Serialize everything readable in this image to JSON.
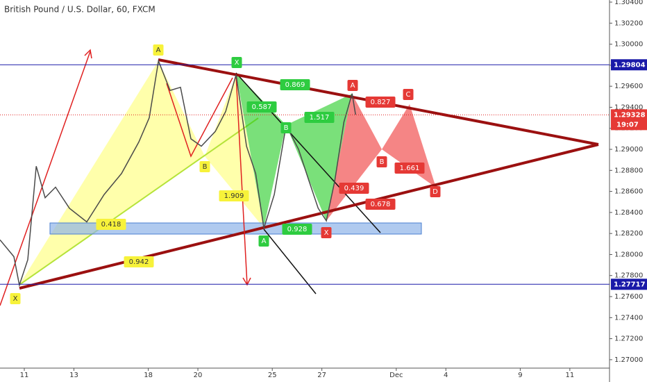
{
  "chart_data": {
    "type": "line",
    "title": "British Pound / U.S. Dollar, 60, FXCM",
    "xlim": [
      -0.98,
      23.6
    ],
    "ylim": [
      1.2692,
      1.3042
    ],
    "xticks": [
      {
        "value": 0,
        "label": "11"
      },
      {
        "value": 2,
        "label": "13"
      },
      {
        "value": 5,
        "label": "18"
      },
      {
        "value": 7,
        "label": "20"
      },
      {
        "value": 10,
        "label": "25"
      },
      {
        "value": 12,
        "label": "27"
      },
      {
        "value": 15,
        "label": "Dec"
      },
      {
        "value": 17,
        "label": "4"
      },
      {
        "value": 20,
        "label": "9"
      },
      {
        "value": 22,
        "label": "11"
      }
    ],
    "yticks": [
      {
        "value": 1.304,
        "label": "1.30400"
      },
      {
        "value": 1.302,
        "label": "1.30200"
      },
      {
        "value": 1.3,
        "label": "1.30000"
      },
      {
        "value": 1.298,
        "label": "1.29800"
      },
      {
        "value": 1.296,
        "label": "1.29600"
      },
      {
        "value": 1.294,
        "label": "1.29400"
      },
      {
        "value": 1.292,
        "label": "1.29200"
      },
      {
        "value": 1.29,
        "label": "1.29000"
      },
      {
        "value": 1.288,
        "label": "1.28800"
      },
      {
        "value": 1.286,
        "label": "1.28600"
      },
      {
        "value": 1.284,
        "label": "1.28400"
      },
      {
        "value": 1.282,
        "label": "1.28200"
      },
      {
        "value": 1.28,
        "label": "1.28000"
      },
      {
        "value": 1.278,
        "label": "1.27800"
      },
      {
        "value": 1.276,
        "label": "1.27600"
      },
      {
        "value": 1.274,
        "label": "1.27400"
      },
      {
        "value": 1.272,
        "label": "1.27200"
      },
      {
        "value": 1.27,
        "label": "1.27000"
      }
    ],
    "series": [
      {
        "color": "#4a4a4a",
        "x": [
          -0.98,
          -0.42,
          -0.2,
          0.14,
          0.48,
          0.84,
          1.26,
          1.82,
          2.52,
          3.22,
          3.92,
          4.62,
          5.04,
          5.41,
          5.88,
          6.3,
          6.72,
          7.14,
          7.7,
          8.12,
          8.54,
          8.96,
          9.33,
          9.66,
          10.08,
          10.56,
          11.06,
          11.48,
          11.85,
          12.18,
          12.52,
          12.89,
          13.22,
          13.36
        ],
        "values": [
          1.2814,
          1.2798,
          1.2771,
          1.2795,
          1.2884,
          1.2854,
          1.2864,
          1.2844,
          1.2831,
          1.2857,
          1.2877,
          1.2907,
          1.293,
          1.2984,
          1.2956,
          1.2959,
          1.291,
          1.2903,
          1.2917,
          1.2936,
          1.2971,
          1.2903,
          1.2877,
          1.2825,
          1.2857,
          1.2923,
          1.29,
          1.287,
          1.2844,
          1.2832,
          1.287,
          1.2926,
          1.2953,
          1.2933
        ]
      }
    ],
    "hlines": [
      {
        "value": 1.29804,
        "color": "#1a1aa8"
      },
      {
        "value": 1.27717,
        "color": "#1a1aa8"
      }
    ],
    "last_price": 1.29328,
    "countdown": "19:07",
    "annotations": [
      "A",
      "X",
      "B",
      "1.909",
      "0.418",
      "0.942",
      "X",
      "A",
      "B",
      "0.869",
      "0.587",
      "1.517",
      "0.928",
      "A",
      "X",
      "B",
      "C",
      "D",
      "0.827",
      "1.661",
      "0.439",
      "0.678"
    ]
  }
}
